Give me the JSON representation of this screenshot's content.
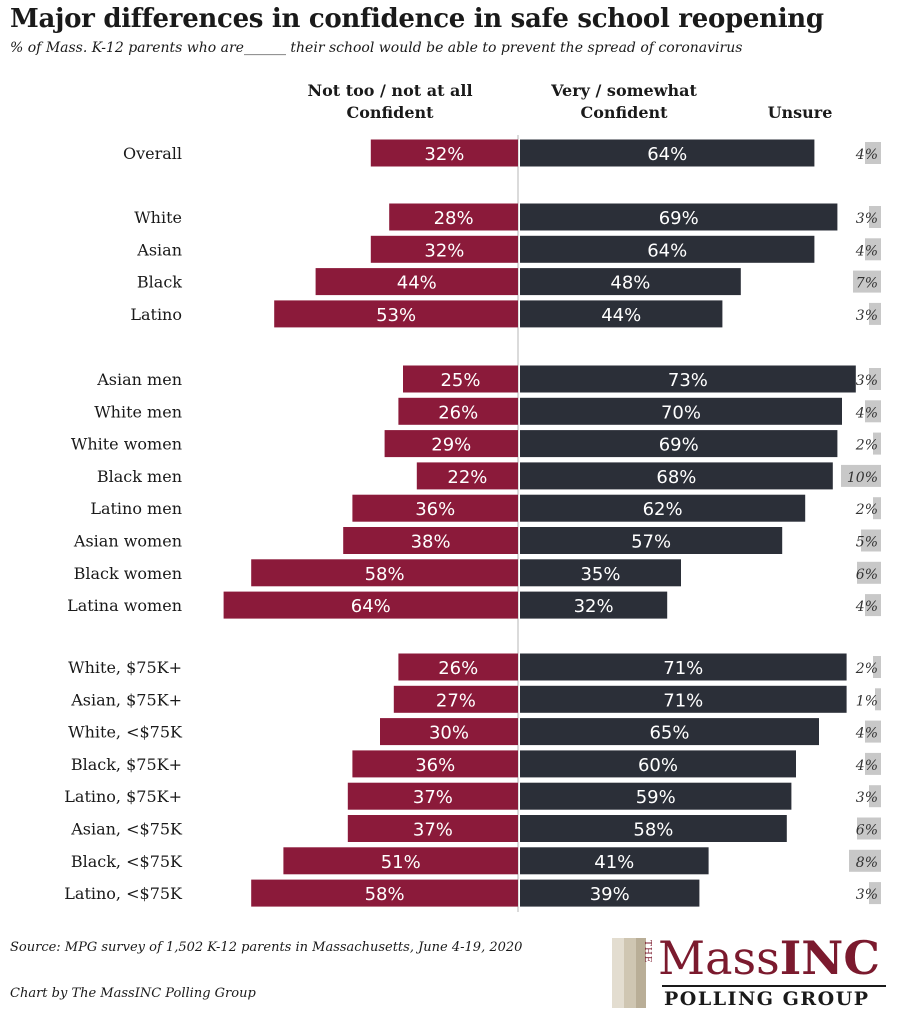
{
  "title": "Major differences in confidence in safe school reopening",
  "subtitle": "% of Mass. K-12 parents who are______ their school would be able to prevent the spread of coronavirus",
  "column_headers": {
    "not_confident": [
      "Not too  / not at all",
      "Confident"
    ],
    "confident": [
      "Very / somewhat",
      "Confident"
    ],
    "unsure": "Unsure"
  },
  "chart_data": {
    "type": "bar",
    "orientation": "horizontal-diverging",
    "groups": [
      [
        "Overall"
      ],
      [
        "White",
        "Asian",
        "Black",
        "Latino"
      ],
      [
        "Asian men",
        "White men",
        "White women",
        "Black men",
        "Latino men",
        "Asian women",
        "Black women",
        "Latina women"
      ],
      [
        "White, $75K+",
        "Asian, $75K+",
        "White, <$75K",
        "Black, $75K+",
        "Latino, $75K+",
        "Asian, <$75K",
        "Black, <$75K",
        "Latino, <$75K"
      ]
    ],
    "categories": [
      "Overall",
      "White",
      "Asian",
      "Black",
      "Latino",
      "Asian men",
      "White men",
      "White women",
      "Black men",
      "Latino men",
      "Asian women",
      "Black women",
      "Latina women",
      "White, $75K+",
      "Asian, $75K+",
      "White, <$75K",
      "Black, $75K+",
      "Latino, $75K+",
      "Asian, <$75K",
      "Black, <$75K",
      "Latino, <$75K"
    ],
    "series": [
      {
        "name": "Not too / not at all Confident",
        "color": "#8b1a3a",
        "values": [
          32,
          28,
          32,
          44,
          53,
          25,
          26,
          29,
          22,
          36,
          38,
          58,
          64,
          26,
          27,
          30,
          36,
          37,
          37,
          51,
          58
        ]
      },
      {
        "name": "Very / somewhat Confident",
        "color": "#2b2f38",
        "values": [
          64,
          69,
          64,
          48,
          44,
          73,
          70,
          69,
          68,
          62,
          57,
          35,
          32,
          71,
          71,
          65,
          60,
          59,
          58,
          41,
          39
        ]
      },
      {
        "name": "Unsure",
        "color": "#c8c8c8",
        "values": [
          4,
          3,
          4,
          7,
          3,
          3,
          4,
          2,
          10,
          2,
          5,
          6,
          4,
          2,
          1,
          4,
          4,
          3,
          6,
          8,
          3
        ]
      }
    ],
    "value_suffix": "%"
  },
  "footer": {
    "source": "Source: MPG survey of 1,502 K-12 parents in Massachusetts, June 4-19, 2020",
    "credit": "Chart by The MassINC Polling Group"
  },
  "logo": {
    "the": "THE",
    "name_light": "Mass",
    "name_bold": "INC",
    "subtitle": "POLLING GROUP",
    "stripe_colors": [
      "#e3ddd0",
      "#cfc6b2",
      "#b9ae97"
    ]
  }
}
